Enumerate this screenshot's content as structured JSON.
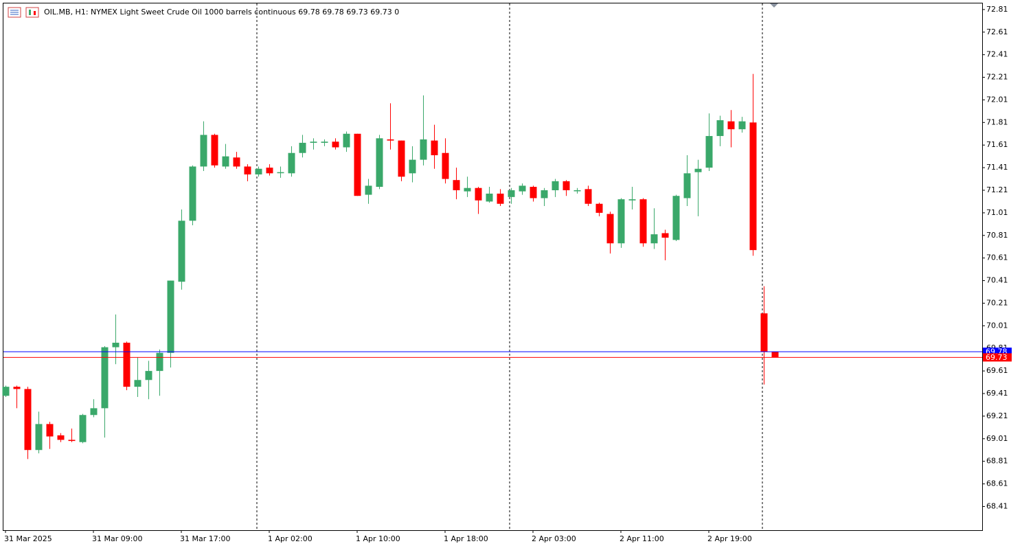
{
  "chart_data": {
    "type": "candlestick",
    "title": "OIL.MB, H1:  NYMEX Light Sweet Crude Oil 1000 barrels continuous  69.78 69.78 69.73 69.73  0",
    "categories": [
      "31 Mar 2025",
      null,
      null,
      null,
      null,
      null,
      null,
      null,
      "31 Mar 09:00",
      null,
      null,
      null,
      null,
      null,
      null,
      null,
      "31 Mar 17:00",
      null,
      null,
      null,
      null,
      null,
      null,
      null,
      "1 Apr 02:00",
      null,
      null,
      null,
      null,
      null,
      null,
      null,
      "1 Apr 10:00",
      null,
      null,
      null,
      null,
      null,
      null,
      null,
      "1 Apr 18:00",
      null,
      null,
      null,
      null,
      null,
      null,
      null,
      "2 Apr 03:00",
      null,
      null,
      null,
      null,
      null,
      null,
      null,
      "2 Apr 11:00",
      null,
      null,
      null,
      null,
      null,
      null,
      null,
      "2 Apr 19:00",
      null,
      null,
      null,
      null,
      null,
      null
    ],
    "open": [
      69.39,
      69.47,
      69.45,
      68.91,
      69.14,
      69.04,
      69.0,
      68.98,
      69.22,
      69.28,
      69.82,
      69.86,
      69.47,
      69.53,
      69.61,
      69.77,
      70.4,
      70.94,
      71.42,
      71.7,
      71.42,
      71.5,
      71.42,
      71.35,
      71.41,
      71.37,
      71.36,
      71.54,
      71.63,
      71.63,
      71.64,
      71.59,
      71.71,
      71.17,
      71.24,
      71.66,
      71.65,
      71.36,
      71.48,
      71.65,
      71.54,
      71.3,
      71.2,
      71.23,
      71.11,
      71.18,
      71.15,
      71.2,
      71.24,
      71.14,
      71.21,
      71.29,
      71.21,
      71.22,
      71.09,
      71.0,
      70.74,
      71.12,
      71.13,
      70.74,
      70.83,
      70.77,
      71.14,
      71.37,
      71.41,
      71.69,
      71.82,
      71.75,
      71.81,
      70.12,
      69.78
    ],
    "high": [
      69.48,
      69.48,
      69.47,
      69.25,
      69.16,
      69.06,
      69.1,
      69.23,
      69.36,
      69.83,
      70.11,
      69.87,
      69.73,
      69.7,
      69.8,
      70.41,
      71.04,
      71.43,
      71.82,
      71.71,
      71.62,
      71.55,
      71.44,
      71.42,
      71.44,
      71.42,
      71.6,
      71.7,
      71.67,
      71.66,
      71.67,
      71.73,
      71.71,
      71.31,
      71.7,
      71.98,
      71.65,
      71.6,
      72.05,
      71.79,
      71.67,
      71.41,
      71.33,
      71.24,
      71.24,
      71.22,
      71.23,
      71.27,
      71.25,
      71.23,
      71.31,
      71.3,
      71.23,
      71.25,
      71.1,
      71.02,
      71.14,
      71.24,
      71.14,
      71.05,
      70.86,
      71.17,
      71.52,
      71.48,
      71.89,
      71.87,
      71.92,
      71.86,
      72.24,
      70.36,
      69.78
    ],
    "low": [
      69.38,
      69.28,
      68.83,
      68.88,
      68.92,
      68.98,
      68.98,
      68.97,
      69.2,
      69.02,
      69.67,
      69.44,
      69.38,
      69.36,
      69.39,
      69.64,
      70.33,
      70.9,
      71.38,
      71.41,
      71.4,
      71.4,
      71.29,
      71.33,
      71.34,
      71.32,
      71.33,
      71.5,
      71.57,
      71.6,
      71.57,
      71.55,
      71.16,
      71.09,
      71.22,
      71.57,
      71.29,
      71.28,
      71.43,
      71.4,
      71.27,
      71.13,
      71.15,
      71.0,
      71.1,
      71.07,
      71.09,
      71.17,
      71.11,
      71.07,
      71.15,
      71.16,
      71.18,
      71.07,
      70.98,
      70.65,
      70.7,
      71.04,
      70.71,
      70.69,
      70.59,
      70.76,
      71.07,
      70.98,
      71.38,
      71.6,
      71.59,
      71.72,
      70.63,
      69.49,
      69.73
    ],
    "close": [
      69.47,
      69.45,
      68.91,
      69.14,
      69.03,
      69.0,
      68.99,
      69.22,
      69.28,
      69.82,
      69.86,
      69.47,
      69.53,
      69.61,
      69.77,
      70.41,
      70.94,
      71.42,
      71.7,
      71.43,
      71.51,
      71.42,
      71.35,
      71.4,
      71.36,
      71.37,
      71.54,
      71.63,
      71.64,
      71.64,
      71.59,
      71.71,
      71.16,
      71.25,
      71.67,
      71.65,
      71.33,
      71.48,
      71.66,
      71.52,
      71.31,
      71.21,
      71.23,
      71.12,
      71.18,
      71.09,
      71.21,
      71.25,
      71.14,
      71.21,
      71.29,
      71.21,
      71.21,
      71.09,
      71.01,
      70.74,
      71.13,
      71.13,
      70.74,
      70.82,
      70.79,
      71.16,
      71.36,
      71.4,
      71.69,
      71.83,
      71.75,
      71.82,
      70.68,
      69.78,
      69.73
    ],
    "up_color": "#3aa86a",
    "down_color": "#ff0000",
    "ylim": [
      68.2,
      72.87
    ],
    "yticks": [
      72.81,
      72.61,
      72.41,
      72.21,
      72.01,
      71.81,
      71.61,
      71.41,
      71.21,
      71.01,
      70.81,
      70.61,
      70.41,
      70.21,
      70.01,
      69.81,
      69.61,
      69.41,
      69.21,
      69.01,
      68.81,
      68.61,
      68.41
    ],
    "price_lines": [
      {
        "value": 69.78,
        "color": "#0000ff"
      },
      {
        "value": 69.73,
        "color": "#ff0000"
      }
    ]
  }
}
